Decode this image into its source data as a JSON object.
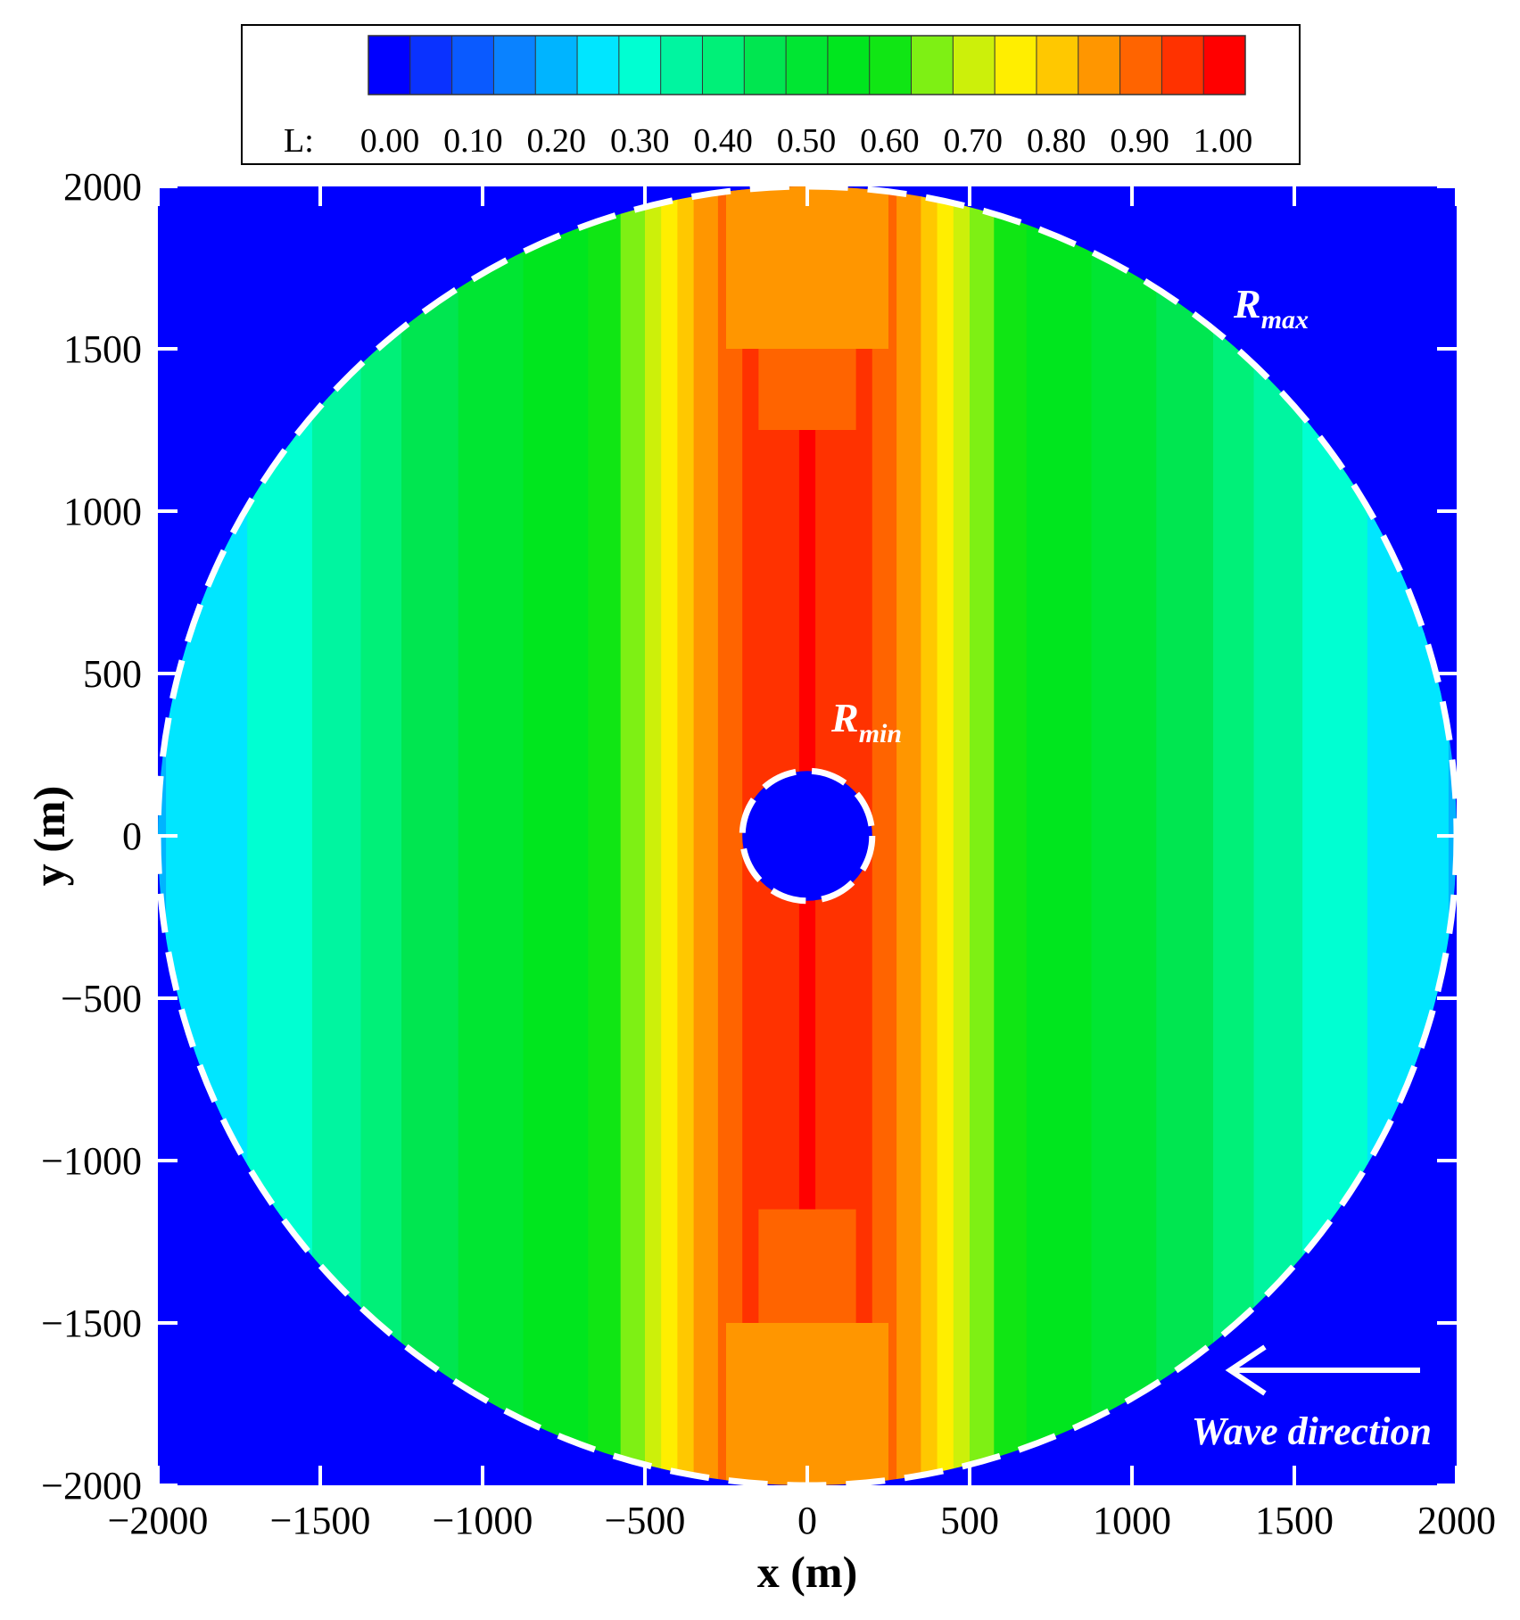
{
  "chart_data": {
    "type": "heatmap",
    "title": "",
    "xlabel": "x (m)",
    "ylabel": "y (m)",
    "xlim": [
      -2000,
      2000
    ],
    "ylim": [
      -2000,
      2000
    ],
    "x_ticks": [
      "−2000",
      "−1500",
      "−1000",
      "−500",
      "0",
      "500",
      "1000",
      "1500",
      "2000"
    ],
    "y_ticks": [
      "2000",
      "1500",
      "1000",
      "500",
      "0",
      "−500",
      "−1000",
      "−1500",
      "−2000"
    ],
    "x_tick_values": [
      -2000,
      -1500,
      -1000,
      -500,
      0,
      500,
      1000,
      1500,
      2000
    ],
    "y_tick_values": [
      2000,
      1500,
      1000,
      500,
      0,
      -500,
      -1000,
      -1500,
      -2000
    ],
    "colorbar": {
      "label": "L:",
      "range": [
        0,
        1
      ],
      "tick_labels": [
        "0.00",
        "0.10",
        "0.20",
        "0.30",
        "0.40",
        "0.50",
        "0.60",
        "0.70",
        "0.80",
        "0.90",
        "1.00"
      ],
      "levels": 21,
      "colors": [
        "#0000ff",
        "#0a32ff",
        "#0a5aff",
        "#0a82ff",
        "#00b4ff",
        "#00e6ff",
        "#00ffd2",
        "#00f5a0",
        "#00f078",
        "#00e650",
        "#00e632",
        "#00e61e",
        "#10e614",
        "#7ef014",
        "#ccf00a",
        "#ffee00",
        "#ffc800",
        "#ff9600",
        "#ff6400",
        "#ff3200",
        "#ff0000"
      ]
    },
    "domain": {
      "r_min_m": 200,
      "r_max_m": 2000,
      "outside_value": 0
    },
    "profile_x": [
      0,
      100,
      200,
      300,
      400,
      500,
      600,
      700,
      800,
      1000,
      1200,
      1400,
      1600,
      1800,
      2000
    ],
    "profile_L": [
      0.98,
      0.96,
      0.92,
      0.86,
      0.78,
      0.68,
      0.6,
      0.56,
      0.54,
      0.5,
      0.44,
      0.36,
      0.3,
      0.26,
      0.22
    ],
    "annotations": {
      "r_max": {
        "main": "R",
        "sub": "max"
      },
      "r_min": {
        "main": "R",
        "sub": "min"
      },
      "wave_direction": "Wave direction"
    }
  }
}
